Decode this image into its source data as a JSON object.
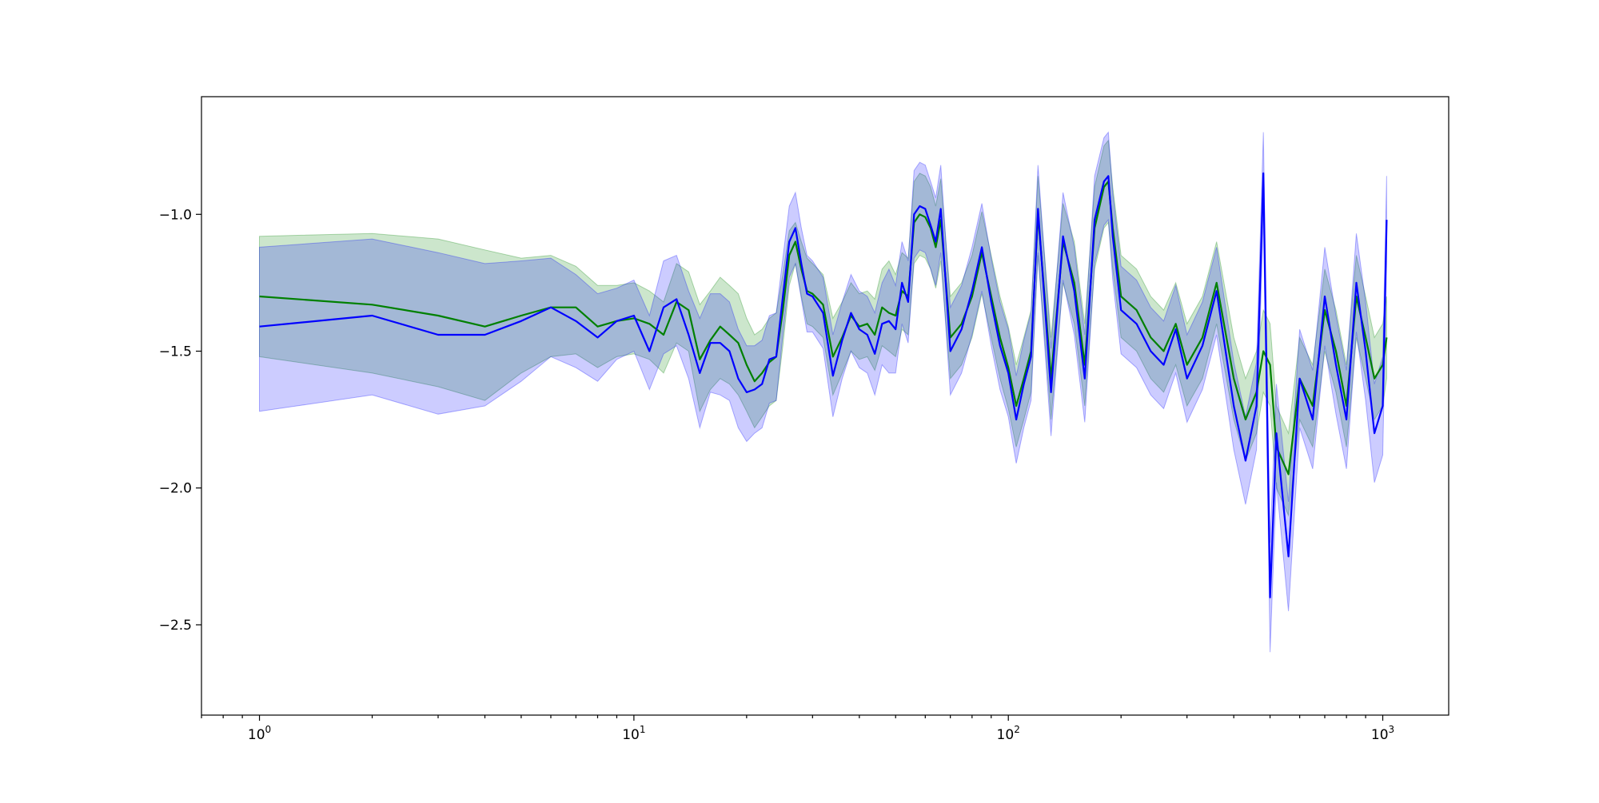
{
  "chart_data": {
    "type": "line",
    "title": "",
    "xlabel": "",
    "ylabel": "",
    "xscale": "log",
    "xlim": [
      0.7,
      1500
    ],
    "ylim": [
      -2.83,
      -0.57
    ],
    "grid": false,
    "legend": "none",
    "x_ticks": [
      {
        "value": 1,
        "base": "10",
        "exp": "0"
      },
      {
        "value": 10,
        "base": "10",
        "exp": "1"
      },
      {
        "value": 100,
        "base": "10",
        "exp": "2"
      },
      {
        "value": 1000,
        "base": "10",
        "exp": "3"
      }
    ],
    "y_ticks": [
      {
        "value": -1.0,
        "label": "−1.0"
      },
      {
        "value": -1.5,
        "label": "−1.5"
      },
      {
        "value": -2.0,
        "label": "−2.0"
      },
      {
        "value": -2.5,
        "label": "−2.5"
      }
    ],
    "series": [
      {
        "color": "#008000",
        "band_color": "#008000",
        "band_opacity": 0.2,
        "x": [
          1,
          2,
          3,
          4,
          5,
          6,
          7,
          8,
          9,
          10,
          11,
          12,
          13,
          14,
          15,
          16,
          17,
          18,
          19,
          20,
          21,
          22,
          23,
          24,
          25,
          26,
          27,
          28,
          29,
          30,
          32,
          34,
          36,
          38,
          40,
          42,
          44,
          46,
          48,
          50,
          52,
          54,
          56,
          58,
          60,
          62,
          64,
          66,
          70,
          75,
          80,
          85,
          90,
          95,
          100,
          105,
          110,
          115,
          120,
          125,
          130,
          140,
          150,
          160,
          170,
          180,
          185,
          190,
          200,
          220,
          240,
          260,
          280,
          300,
          330,
          360,
          400,
          430,
          460,
          480,
          500,
          520,
          560,
          600,
          650,
          700,
          750,
          800,
          850,
          900,
          950,
          1000,
          1024
        ],
        "y": [
          -1.3,
          -1.33,
          -1.37,
          -1.41,
          -1.37,
          -1.34,
          -1.34,
          -1.41,
          -1.39,
          -1.38,
          -1.4,
          -1.44,
          -1.32,
          -1.35,
          -1.53,
          -1.46,
          -1.41,
          -1.44,
          -1.47,
          -1.55,
          -1.61,
          -1.58,
          -1.54,
          -1.52,
          -1.35,
          -1.15,
          -1.1,
          -1.2,
          -1.28,
          -1.29,
          -1.33,
          -1.52,
          -1.45,
          -1.37,
          -1.41,
          -1.4,
          -1.44,
          -1.34,
          -1.36,
          -1.37,
          -1.28,
          -1.3,
          -1.03,
          -1.0,
          -1.01,
          -1.05,
          -1.12,
          -1.02,
          -1.45,
          -1.4,
          -1.3,
          -1.14,
          -1.3,
          -1.45,
          -1.56,
          -1.7,
          -1.6,
          -1.5,
          -1.0,
          -1.3,
          -1.6,
          -1.1,
          -1.25,
          -1.55,
          -1.05,
          -0.9,
          -0.88,
          -1.05,
          -1.3,
          -1.35,
          -1.45,
          -1.5,
          -1.4,
          -1.55,
          -1.45,
          -1.25,
          -1.6,
          -1.75,
          -1.65,
          -1.5,
          -1.55,
          -1.85,
          -1.95,
          -1.6,
          -1.7,
          -1.35,
          -1.5,
          -1.7,
          -1.3,
          -1.45,
          -1.6,
          -1.55,
          -1.45
        ],
        "upper": [
          -1.08,
          -1.07,
          -1.09,
          -1.13,
          -1.16,
          -1.15,
          -1.19,
          -1.26,
          -1.26,
          -1.25,
          -1.28,
          -1.32,
          -1.18,
          -1.21,
          -1.33,
          -1.28,
          -1.23,
          -1.26,
          -1.29,
          -1.38,
          -1.44,
          -1.42,
          -1.38,
          -1.36,
          -1.22,
          -1.06,
          -1.03,
          -1.1,
          -1.16,
          -1.18,
          -1.22,
          -1.38,
          -1.32,
          -1.25,
          -1.29,
          -1.28,
          -1.31,
          -1.2,
          -1.17,
          -1.22,
          -1.14,
          -1.16,
          -0.88,
          -0.85,
          -0.86,
          -0.9,
          -0.97,
          -0.87,
          -1.3,
          -1.25,
          -1.15,
          -0.99,
          -1.15,
          -1.3,
          -1.41,
          -1.55,
          -1.45,
          -1.35,
          -0.86,
          -1.15,
          -1.45,
          -0.96,
          -1.1,
          -1.4,
          -0.9,
          -0.75,
          -0.73,
          -0.9,
          -1.15,
          -1.2,
          -1.3,
          -1.35,
          -1.25,
          -1.4,
          -1.3,
          -1.1,
          -1.45,
          -1.6,
          -1.5,
          -1.35,
          -1.4,
          -1.7,
          -1.8,
          -1.45,
          -1.55,
          -1.2,
          -1.35,
          -1.55,
          -1.15,
          -1.3,
          -1.45,
          -1.4,
          -1.3
        ],
        "lower": [
          -1.52,
          -1.58,
          -1.63,
          -1.68,
          -1.58,
          -1.52,
          -1.51,
          -1.56,
          -1.52,
          -1.51,
          -1.53,
          -1.58,
          -1.47,
          -1.5,
          -1.72,
          -1.64,
          -1.6,
          -1.62,
          -1.66,
          -1.72,
          -1.78,
          -1.74,
          -1.7,
          -1.68,
          -1.48,
          -1.26,
          -1.18,
          -1.3,
          -1.4,
          -1.41,
          -1.45,
          -1.66,
          -1.58,
          -1.5,
          -1.53,
          -1.52,
          -1.57,
          -1.48,
          -1.5,
          -1.52,
          -1.42,
          -1.44,
          -1.18,
          -1.15,
          -1.16,
          -1.2,
          -1.27,
          -1.17,
          -1.6,
          -1.55,
          -1.45,
          -1.29,
          -1.45,
          -1.6,
          -1.71,
          -1.85,
          -1.75,
          -1.65,
          -1.15,
          -1.45,
          -1.75,
          -1.25,
          -1.4,
          -1.7,
          -1.2,
          -1.05,
          -1.03,
          -1.2,
          -1.45,
          -1.5,
          -1.6,
          -1.65,
          -1.55,
          -1.7,
          -1.6,
          -1.4,
          -1.75,
          -1.9,
          -1.8,
          -1.65,
          -1.7,
          -2.0,
          -2.1,
          -1.75,
          -1.85,
          -1.5,
          -1.65,
          -1.85,
          -1.45,
          -1.6,
          -1.75,
          -1.7,
          -1.6
        ]
      },
      {
        "color": "#0000ff",
        "band_color": "#0000ff",
        "band_opacity": 0.2,
        "x": [
          1,
          2,
          3,
          4,
          5,
          6,
          7,
          8,
          9,
          10,
          11,
          12,
          13,
          14,
          15,
          16,
          17,
          18,
          19,
          20,
          21,
          22,
          23,
          24,
          25,
          26,
          27,
          28,
          29,
          30,
          32,
          34,
          36,
          38,
          40,
          42,
          44,
          46,
          48,
          50,
          52,
          54,
          56,
          58,
          60,
          62,
          64,
          66,
          70,
          75,
          80,
          85,
          90,
          95,
          100,
          105,
          110,
          115,
          120,
          125,
          130,
          140,
          150,
          160,
          170,
          180,
          185,
          190,
          200,
          220,
          240,
          260,
          280,
          300,
          330,
          360,
          400,
          430,
          460,
          480,
          500,
          520,
          560,
          600,
          650,
          700,
          750,
          800,
          850,
          900,
          950,
          1000,
          1024
        ],
        "y": [
          -1.41,
          -1.37,
          -1.44,
          -1.44,
          -1.39,
          -1.34,
          -1.39,
          -1.45,
          -1.39,
          -1.37,
          -1.5,
          -1.34,
          -1.31,
          -1.44,
          -1.58,
          -1.47,
          -1.47,
          -1.5,
          -1.6,
          -1.65,
          -1.64,
          -1.62,
          -1.53,
          -1.52,
          -1.3,
          -1.1,
          -1.05,
          -1.18,
          -1.29,
          -1.3,
          -1.36,
          -1.59,
          -1.46,
          -1.36,
          -1.42,
          -1.44,
          -1.51,
          -1.4,
          -1.39,
          -1.42,
          -1.25,
          -1.32,
          -1.0,
          -0.97,
          -0.98,
          -1.04,
          -1.1,
          -0.98,
          -1.5,
          -1.42,
          -1.28,
          -1.12,
          -1.32,
          -1.48,
          -1.58,
          -1.75,
          -1.62,
          -1.52,
          -0.98,
          -1.32,
          -1.65,
          -1.08,
          -1.28,
          -1.6,
          -1.02,
          -0.88,
          -0.86,
          -1.08,
          -1.35,
          -1.4,
          -1.5,
          -1.55,
          -1.42,
          -1.6,
          -1.48,
          -1.28,
          -1.7,
          -1.9,
          -1.7,
          -0.85,
          -2.4,
          -1.8,
          -2.25,
          -1.6,
          -1.75,
          -1.3,
          -1.55,
          -1.75,
          -1.25,
          -1.5,
          -1.8,
          -1.7,
          -1.02
        ],
        "upper": [
          -1.12,
          -1.09,
          -1.14,
          -1.18,
          -1.17,
          -1.16,
          -1.22,
          -1.29,
          -1.27,
          -1.24,
          -1.37,
          -1.17,
          -1.15,
          -1.28,
          -1.38,
          -1.29,
          -1.29,
          -1.32,
          -1.42,
          -1.48,
          -1.48,
          -1.46,
          -1.37,
          -1.36,
          -1.16,
          -0.97,
          -0.92,
          -1.05,
          -1.15,
          -1.17,
          -1.23,
          -1.44,
          -1.32,
          -1.22,
          -1.28,
          -1.3,
          -1.36,
          -1.25,
          -1.2,
          -1.26,
          -1.1,
          -1.17,
          -0.84,
          -0.81,
          -0.82,
          -0.88,
          -0.94,
          -0.82,
          -1.34,
          -1.26,
          -1.12,
          -0.96,
          -1.16,
          -1.32,
          -1.42,
          -1.59,
          -1.46,
          -1.36,
          -0.82,
          -1.16,
          -1.49,
          -0.92,
          -1.12,
          -1.44,
          -0.86,
          -0.72,
          -0.7,
          -0.92,
          -1.19,
          -1.24,
          -1.34,
          -1.39,
          -1.26,
          -1.44,
          -1.32,
          -1.12,
          -1.54,
          -1.74,
          -1.54,
          -0.7,
          -2.2,
          -1.62,
          -2.05,
          -1.42,
          -1.57,
          -1.12,
          -1.37,
          -1.57,
          -1.07,
          -1.32,
          -1.62,
          -1.52,
          -0.86
        ],
        "lower": [
          -1.72,
          -1.66,
          -1.73,
          -1.7,
          -1.61,
          -1.52,
          -1.56,
          -1.61,
          -1.53,
          -1.5,
          -1.64,
          -1.51,
          -1.48,
          -1.6,
          -1.78,
          -1.65,
          -1.66,
          -1.68,
          -1.78,
          -1.83,
          -1.8,
          -1.78,
          -1.69,
          -1.68,
          -1.44,
          -1.23,
          -1.18,
          -1.31,
          -1.43,
          -1.43,
          -1.49,
          -1.74,
          -1.6,
          -1.5,
          -1.56,
          -1.58,
          -1.66,
          -1.55,
          -1.58,
          -1.58,
          -1.4,
          -1.47,
          -1.16,
          -1.13,
          -1.14,
          -1.2,
          -1.26,
          -1.14,
          -1.66,
          -1.58,
          -1.44,
          -1.28,
          -1.48,
          -1.64,
          -1.74,
          -1.91,
          -1.78,
          -1.68,
          -1.14,
          -1.48,
          -1.81,
          -1.24,
          -1.44,
          -1.76,
          -1.18,
          -1.04,
          -1.02,
          -1.24,
          -1.51,
          -1.56,
          -1.66,
          -1.71,
          -1.58,
          -1.76,
          -1.64,
          -1.44,
          -1.86,
          -2.06,
          -1.86,
          -1.0,
          -2.6,
          -1.98,
          -2.45,
          -1.78,
          -1.93,
          -1.48,
          -1.73,
          -1.93,
          -1.43,
          -1.68,
          -1.98,
          -1.88,
          -1.18
        ]
      }
    ]
  }
}
